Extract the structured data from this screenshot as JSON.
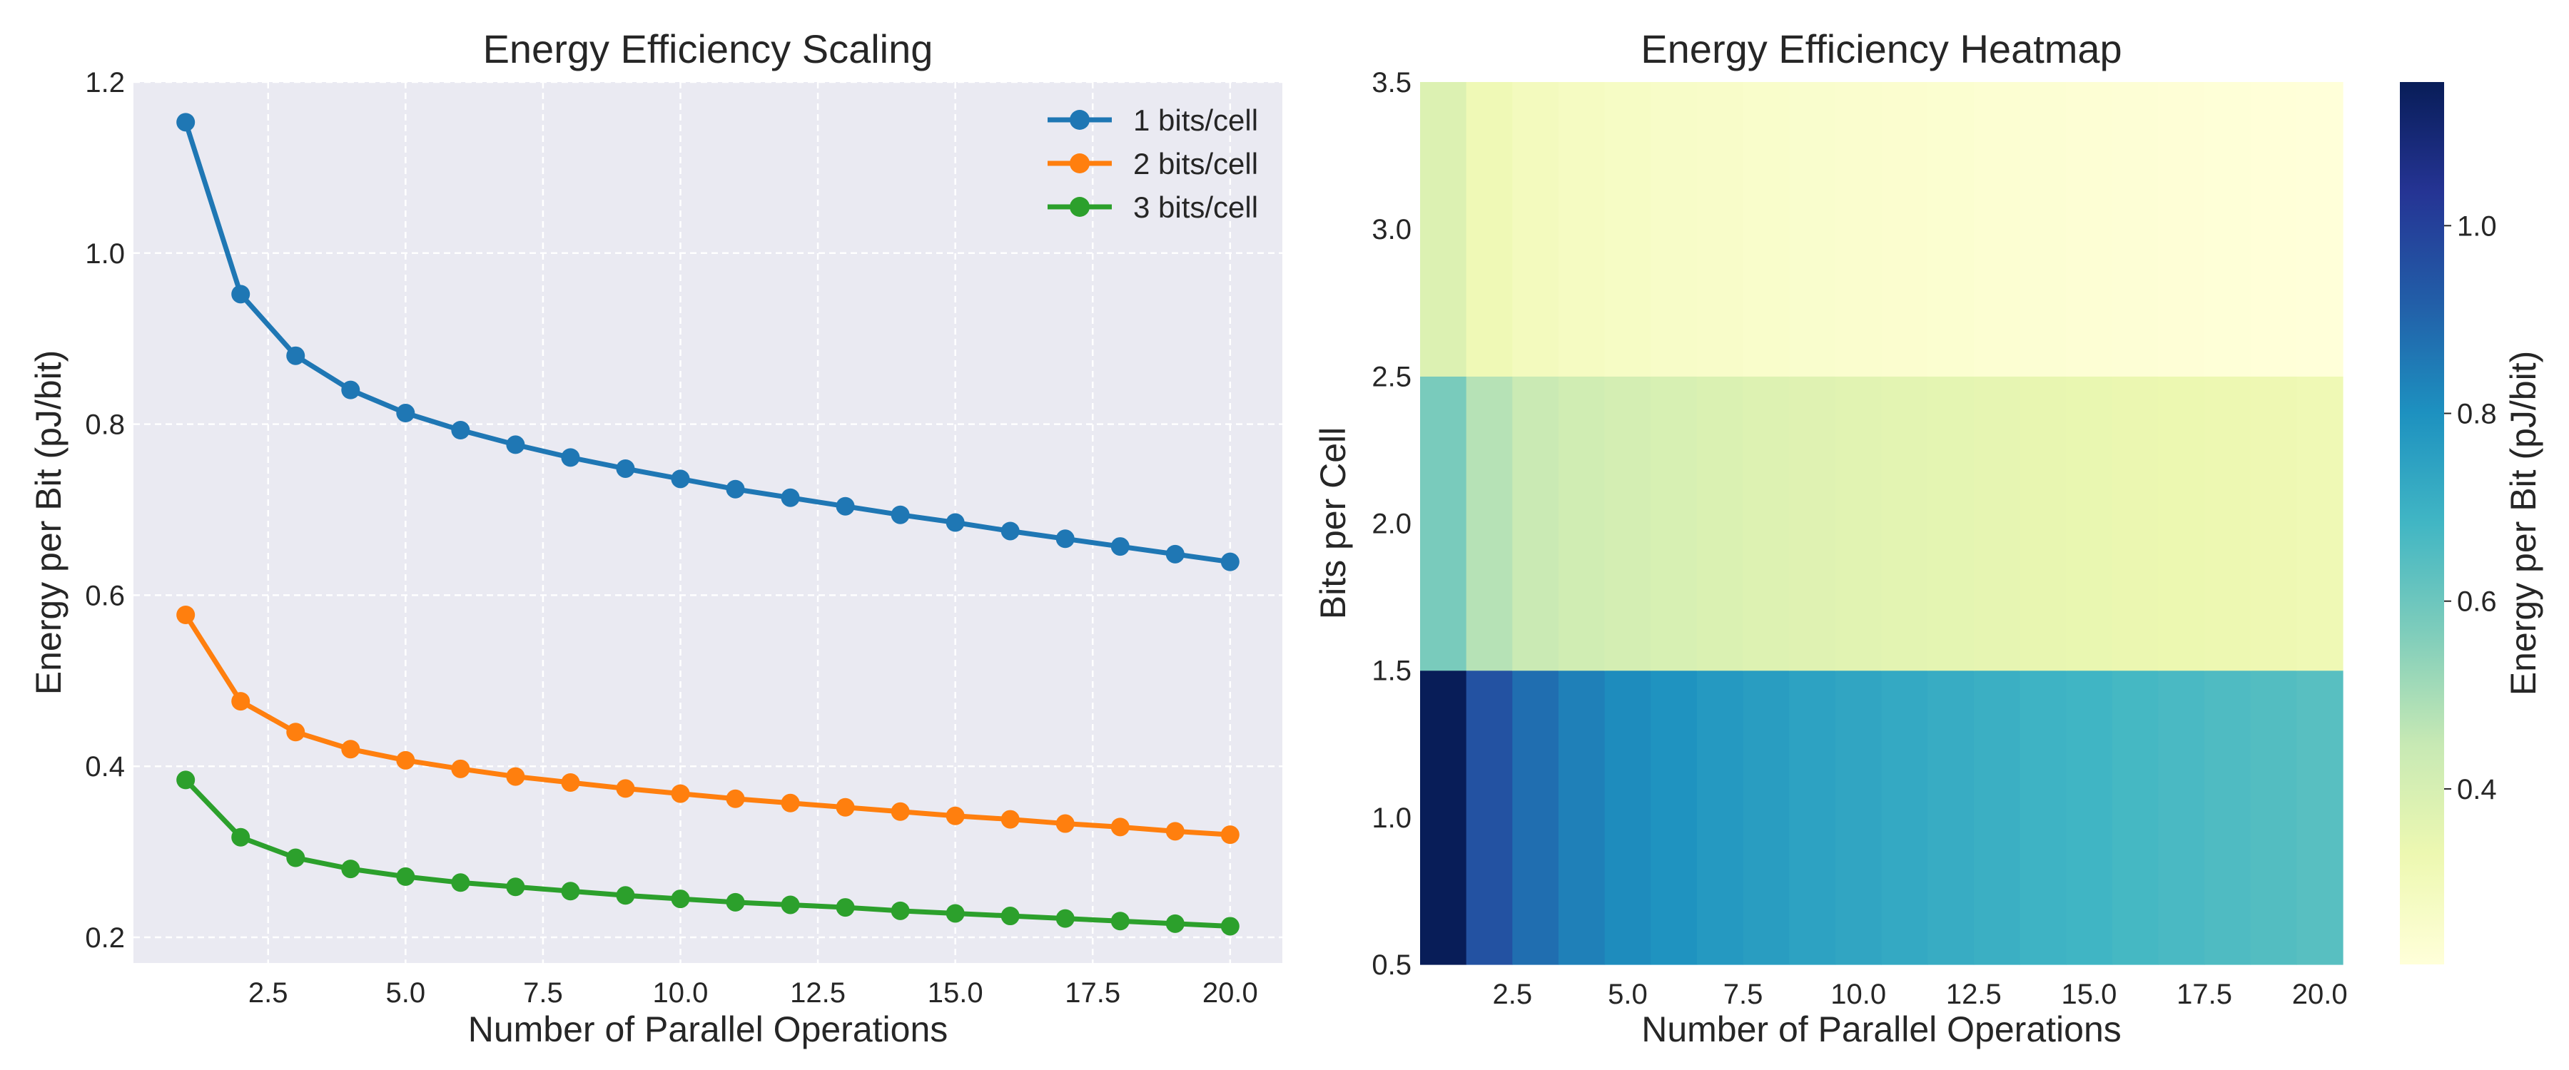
{
  "chart_data": [
    {
      "type": "line",
      "title": "Energy Efficiency Scaling",
      "xlabel": "Number of Parallel Operations",
      "ylabel": "Energy per Bit (pJ/bit)",
      "x": [
        1,
        2,
        3,
        4,
        5,
        6,
        7,
        8,
        9,
        10,
        11,
        12,
        13,
        14,
        15,
        16,
        17,
        18,
        19,
        20
      ],
      "xlim": [
        0.05,
        20.95
      ],
      "ylim": [
        0.17,
        1.2
      ],
      "xticks": [
        2.5,
        5.0,
        7.5,
        10.0,
        12.5,
        15.0,
        17.5,
        20.0
      ],
      "xtick_labels": [
        "2.5",
        "5.0",
        "7.5",
        "10.0",
        "12.5",
        "15.0",
        "17.5",
        "20.0"
      ],
      "yticks": [
        0.2,
        0.4,
        0.6,
        0.8,
        1.0,
        1.2
      ],
      "ytick_labels": [
        "0.2",
        "0.4",
        "0.6",
        "0.8",
        "1.0",
        "1.2"
      ],
      "grid": true,
      "legend": "top-right",
      "series": [
        {
          "name": "1 bits/cell",
          "color": "#1f77b4",
          "values": [
            1.153,
            0.952,
            0.88,
            0.84,
            0.813,
            0.793,
            0.776,
            0.761,
            0.748,
            0.736,
            0.724,
            0.714,
            0.704,
            0.694,
            0.685,
            0.675,
            0.666,
            0.657,
            0.648,
            0.639
          ]
        },
        {
          "name": "2 bits/cell",
          "color": "#ff7f0e",
          "values": [
            0.577,
            0.476,
            0.44,
            0.42,
            0.407,
            0.397,
            0.388,
            0.381,
            0.374,
            0.368,
            0.362,
            0.357,
            0.352,
            0.347,
            0.342,
            0.338,
            0.333,
            0.329,
            0.324,
            0.32
          ]
        },
        {
          "name": "3 bits/cell",
          "color": "#2ca02c",
          "values": [
            0.384,
            0.317,
            0.293,
            0.28,
            0.271,
            0.264,
            0.259,
            0.254,
            0.249,
            0.245,
            0.241,
            0.238,
            0.235,
            0.231,
            0.228,
            0.225,
            0.222,
            0.219,
            0.216,
            0.213
          ]
        }
      ]
    },
    {
      "type": "heatmap",
      "title": "Energy Efficiency Heatmap",
      "xlabel": "Number of Parallel Operations",
      "ylabel": "Bits per Cell",
      "x": [
        1,
        2,
        3,
        4,
        5,
        6,
        7,
        8,
        9,
        10,
        11,
        12,
        13,
        14,
        15,
        16,
        17,
        18,
        19,
        20
      ],
      "y": [
        1,
        2,
        3
      ],
      "xlim": [
        0.5,
        20.5
      ],
      "ylim": [
        0.5,
        3.5
      ],
      "xticks": [
        2.5,
        5.0,
        7.5,
        10.0,
        12.5,
        15.0,
        17.5,
        20.0
      ],
      "xtick_labels": [
        "2.5",
        "5.0",
        "7.5",
        "10.0",
        "12.5",
        "15.0",
        "17.5",
        "20.0"
      ],
      "yticks": [
        0.5,
        1.0,
        1.5,
        2.0,
        2.5,
        3.0,
        3.5
      ],
      "ytick_labels": [
        "0.5",
        "1.0",
        "1.5",
        "2.0",
        "2.5",
        "3.0",
        "3.5"
      ],
      "colormap": "YlGnBu",
      "vmin": 0.213,
      "vmax": 1.153,
      "colorbar_label": "Energy per Bit (pJ/bit)",
      "colorbar_ticks": [
        0.4,
        0.6,
        0.8,
        1.0
      ],
      "colorbar_tick_labels": [
        "0.4",
        "0.6",
        "0.8",
        "1.0"
      ],
      "values": [
        [
          1.153,
          0.952,
          0.88,
          0.84,
          0.813,
          0.793,
          0.776,
          0.761,
          0.748,
          0.736,
          0.724,
          0.714,
          0.704,
          0.694,
          0.685,
          0.675,
          0.666,
          0.657,
          0.648,
          0.639
        ],
        [
          0.577,
          0.476,
          0.44,
          0.42,
          0.407,
          0.397,
          0.388,
          0.381,
          0.374,
          0.368,
          0.362,
          0.357,
          0.352,
          0.347,
          0.342,
          0.338,
          0.333,
          0.329,
          0.324,
          0.32
        ],
        [
          0.384,
          0.317,
          0.293,
          0.28,
          0.271,
          0.264,
          0.259,
          0.254,
          0.249,
          0.245,
          0.241,
          0.238,
          0.235,
          0.231,
          0.228,
          0.225,
          0.222,
          0.219,
          0.216,
          0.213
        ]
      ]
    }
  ]
}
